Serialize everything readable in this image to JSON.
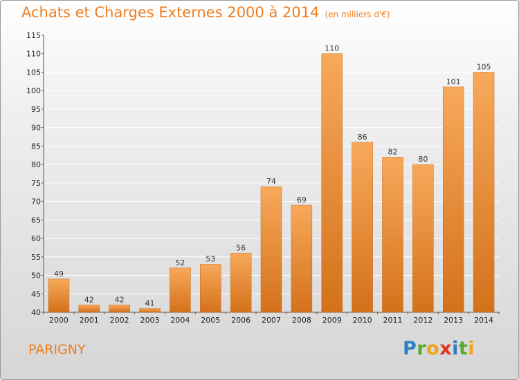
{
  "header": {
    "title": "Achats et Charges Externes 2000 à 2014",
    "subtitle": "(en milliers d'€)"
  },
  "footer": {
    "commune": "PARIGNY",
    "logo": "Proxiti"
  },
  "colors": {
    "title": "#ee7d1f",
    "bar_light": "#f7a95a",
    "bar_dark": "#d4711b",
    "grid": "#ffffff"
  },
  "chart_data": {
    "type": "bar",
    "title": "Achats et Charges Externes 2000 à 2014",
    "subtitle": "(en milliers d'€)",
    "xlabel": "",
    "ylabel": "",
    "categories": [
      "2000",
      "2001",
      "2002",
      "2003",
      "2004",
      "2005",
      "2006",
      "2007",
      "2008",
      "2009",
      "2010",
      "2011",
      "2012",
      "2013",
      "2014"
    ],
    "values": [
      49,
      42,
      42,
      41,
      52,
      53,
      56,
      74,
      69,
      110,
      86,
      82,
      80,
      101,
      105
    ],
    "ylim": [
      40,
      115
    ],
    "yticks": [
      40,
      45,
      50,
      55,
      60,
      65,
      70,
      75,
      80,
      85,
      90,
      95,
      100,
      105,
      110,
      115
    ],
    "grid": true,
    "data_labels": true
  }
}
